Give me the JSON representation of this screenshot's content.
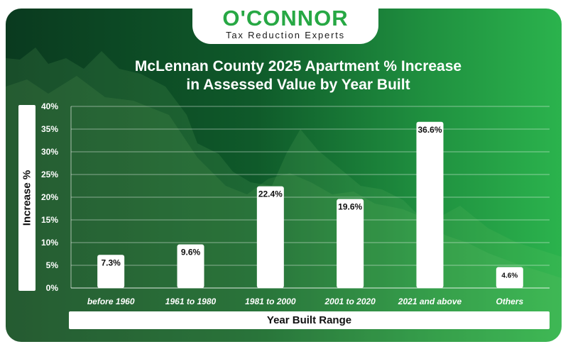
{
  "brand": {
    "name": "O'CONNOR",
    "tagline": "Tax Reduction Experts"
  },
  "colors": {
    "brand_green": "#27a844",
    "bar_fill": "#ffffff",
    "background_dark": "#0a3a1f",
    "background_light": "#2bb34d"
  },
  "chart_data": {
    "type": "bar",
    "title": "McLennan County 2025 Apartment % Increase in Assessed Value by Year Built",
    "title_lines": [
      "McLennan County 2025 Apartment % Increase",
      "in Assessed Value by Year Built"
    ],
    "xlabel": "Year Built Range",
    "ylabel": "Increase %",
    "categories": [
      "before 1960",
      "1961 to 1980",
      "1981 to 2000",
      "2001 to 2020",
      "2021 and above",
      "Others"
    ],
    "values": [
      7.3,
      9.6,
      22.4,
      19.6,
      36.6,
      4.6
    ],
    "value_labels": [
      "7.3%",
      "9.6%",
      "22.4%",
      "19.6%",
      "36.6%",
      "4.6%"
    ],
    "ylim": [
      0,
      40
    ],
    "yticks": [
      0,
      5,
      10,
      15,
      20,
      25,
      30,
      35,
      40
    ],
    "ytick_labels": [
      "0%",
      "5%",
      "10%",
      "15%",
      "20%",
      "25%",
      "30%",
      "35%",
      "40%"
    ],
    "grid": true
  }
}
